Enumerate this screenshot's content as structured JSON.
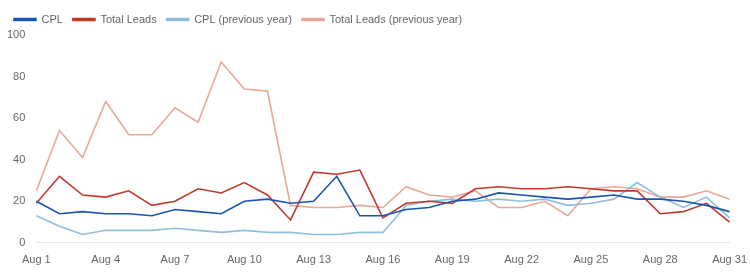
{
  "chart_data": {
    "type": "line",
    "categories": [
      "Aug 1",
      null,
      null,
      "Aug 4",
      null,
      null,
      "Aug 7",
      null,
      null,
      "Aug 10",
      null,
      null,
      "Aug 13",
      null,
      null,
      "Aug 16",
      null,
      null,
      "Aug 19",
      null,
      null,
      "Aug 22",
      null,
      null,
      "Aug 25",
      null,
      null,
      "Aug 28",
      null,
      null,
      "Aug 31"
    ],
    "series": [
      {
        "name": "CPL",
        "color": "#1a56b0",
        "values": [
          20,
          14,
          15,
          14,
          14,
          13,
          16,
          15,
          14,
          20,
          21,
          19,
          20,
          32,
          13,
          13,
          16,
          17,
          20,
          21,
          24,
          23,
          22,
          21,
          22,
          23,
          21,
          21,
          20,
          18,
          15
        ]
      },
      {
        "name": "Total Leads",
        "color": "#c0392b",
        "values": [
          19,
          32,
          23,
          22,
          25,
          18,
          20,
          26,
          24,
          29,
          23,
          11,
          34,
          33,
          35,
          12,
          19,
          20,
          19,
          26,
          27,
          26,
          26,
          27,
          26,
          25,
          25,
          14,
          15,
          19,
          10
        ]
      },
      {
        "name": "CPL (previous year)",
        "color": "#90bfdd",
        "values": [
          13,
          8,
          4,
          6,
          6,
          6,
          7,
          6,
          5,
          6,
          5,
          5,
          4,
          4,
          5,
          5,
          18,
          20,
          21,
          20,
          21,
          20,
          21,
          18,
          19,
          21,
          29,
          22,
          17,
          22,
          12
        ]
      },
      {
        "name": "Total Leads (previous year)",
        "color": "#e8a898",
        "values": [
          25,
          54,
          41,
          68,
          52,
          52,
          65,
          58,
          87,
          74,
          73,
          18,
          17,
          17,
          18,
          17,
          27,
          23,
          22,
          25,
          17,
          17,
          20,
          13,
          26,
          27,
          26,
          22,
          22,
          25,
          21
        ]
      }
    ],
    "ylim": [
      0,
      100
    ],
    "yticks": [
      0,
      20,
      40,
      60,
      80,
      100
    ],
    "grid": false,
    "legend": "top-left"
  }
}
